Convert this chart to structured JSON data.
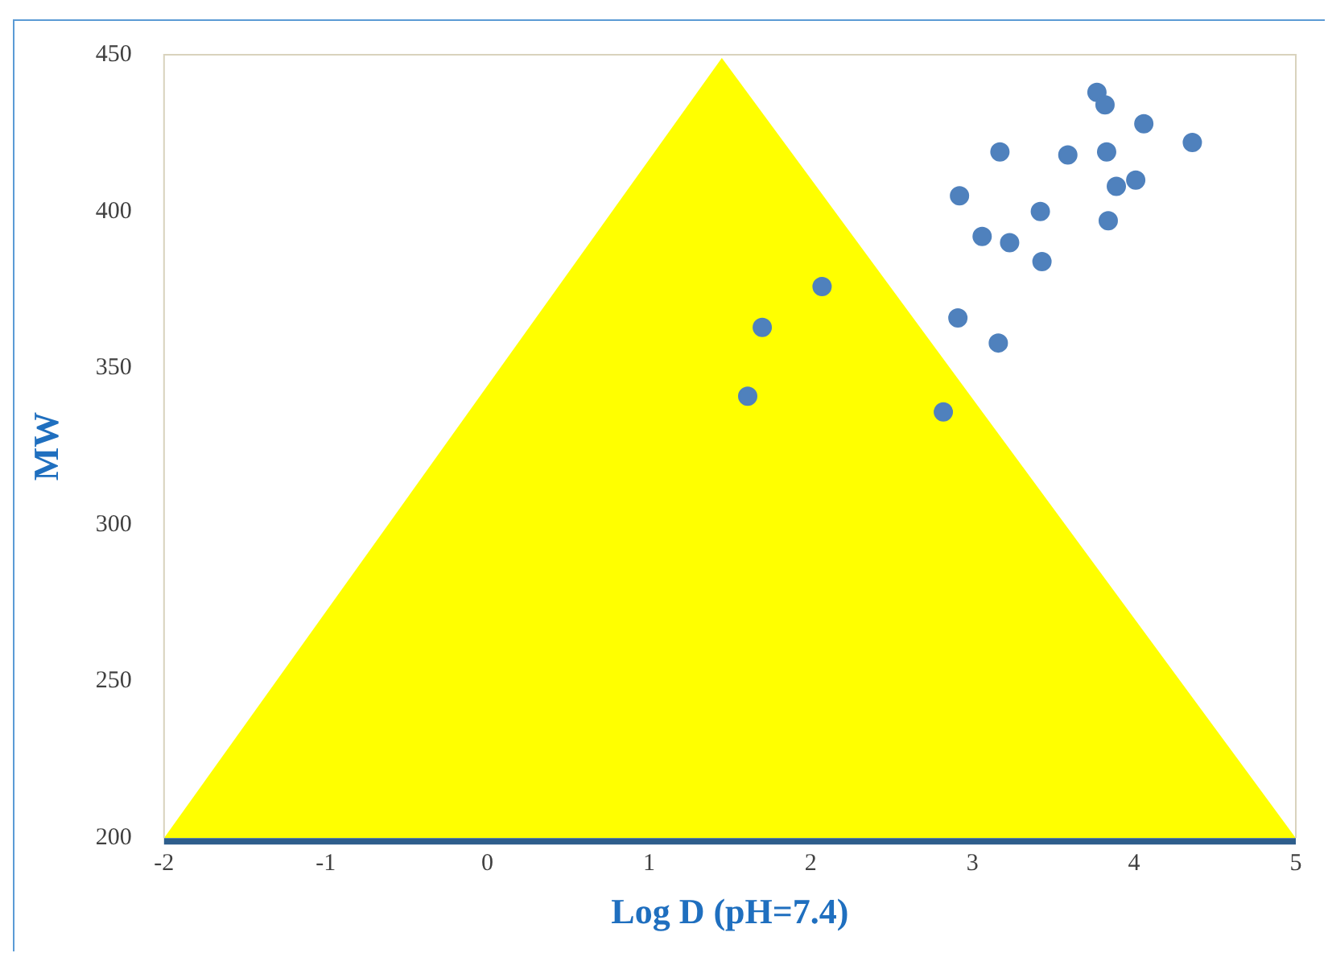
{
  "chart_data": {
    "type": "scatter",
    "xlabel": "Log D (pH=7.4)",
    "ylabel": "MW",
    "xlim": [
      -2,
      5
    ],
    "xticks": [
      -2,
      -1,
      0,
      1,
      2,
      3,
      4,
      5
    ],
    "ylim": [
      200,
      450
    ],
    "yticks": [
      200,
      250,
      300,
      350,
      400,
      450
    ],
    "grid": false,
    "legend": false,
    "marker": "circle",
    "series": [
      {
        "type": "area",
        "marker": "none",
        "color": "#ffff00",
        "x": [
          -2,
          1.45,
          5
        ],
        "values": [
          200,
          449,
          200
        ]
      },
      {
        "color": "#4f81bd",
        "x": [
          1.61,
          1.7,
          2.07,
          2.82,
          2.91,
          3.16,
          2.92,
          3.06,
          3.23,
          3.42,
          3.43,
          3.17,
          3.59,
          3.77,
          3.82,
          4.06,
          3.83,
          3.89,
          4.01,
          3.84,
          4.36
        ],
        "values": [
          341,
          363,
          376,
          336,
          366,
          358,
          405,
          392,
          390,
          400,
          384,
          419,
          418,
          438,
          434,
          428,
          419,
          408,
          410,
          397,
          422
        ]
      }
    ]
  }
}
